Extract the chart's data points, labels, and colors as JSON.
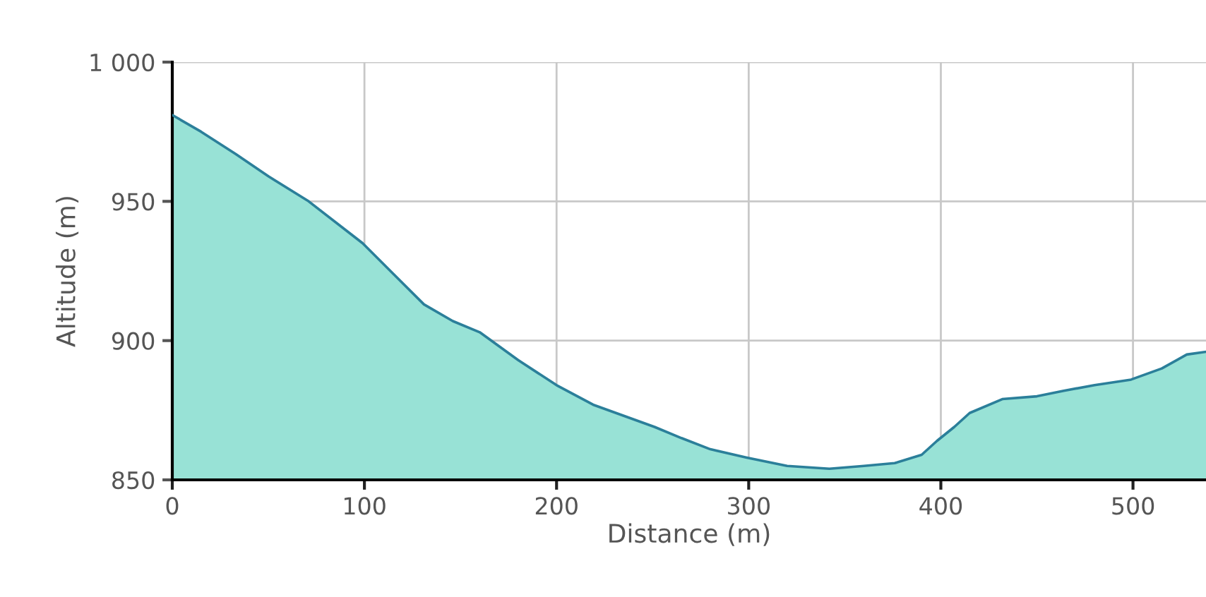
{
  "chart_data": {
    "type": "area",
    "xlabel": "Distance (m)",
    "ylabel": "Altitude (m)",
    "x": [
      0,
      15,
      33,
      50,
      71,
      99,
      115,
      131,
      146,
      160,
      180,
      200,
      219,
      235,
      251,
      265,
      280,
      299,
      320,
      342,
      360,
      376,
      390,
      398,
      407,
      415,
      432,
      450,
      464,
      480,
      499,
      515,
      528,
      538
    ],
    "series": [
      {
        "color": "#98e2d6",
        "values": [
          981,
          975,
          967,
          959,
          950,
          935,
          924,
          913,
          907,
          903,
          893,
          884,
          877,
          873,
          869,
          865,
          861,
          858,
          855,
          854,
          855,
          856,
          859,
          864,
          869,
          874,
          879,
          880,
          882,
          884,
          886,
          890,
          895,
          896
        ]
      }
    ],
    "xlim": [
      0,
      538
    ],
    "ylim": [
      850,
      1000
    ],
    "xticks": [
      0,
      100,
      200,
      300,
      400,
      500
    ],
    "yticks": [
      850,
      900,
      950,
      {
        "value": 1000,
        "label": "1 000"
      }
    ],
    "grid": true
  }
}
